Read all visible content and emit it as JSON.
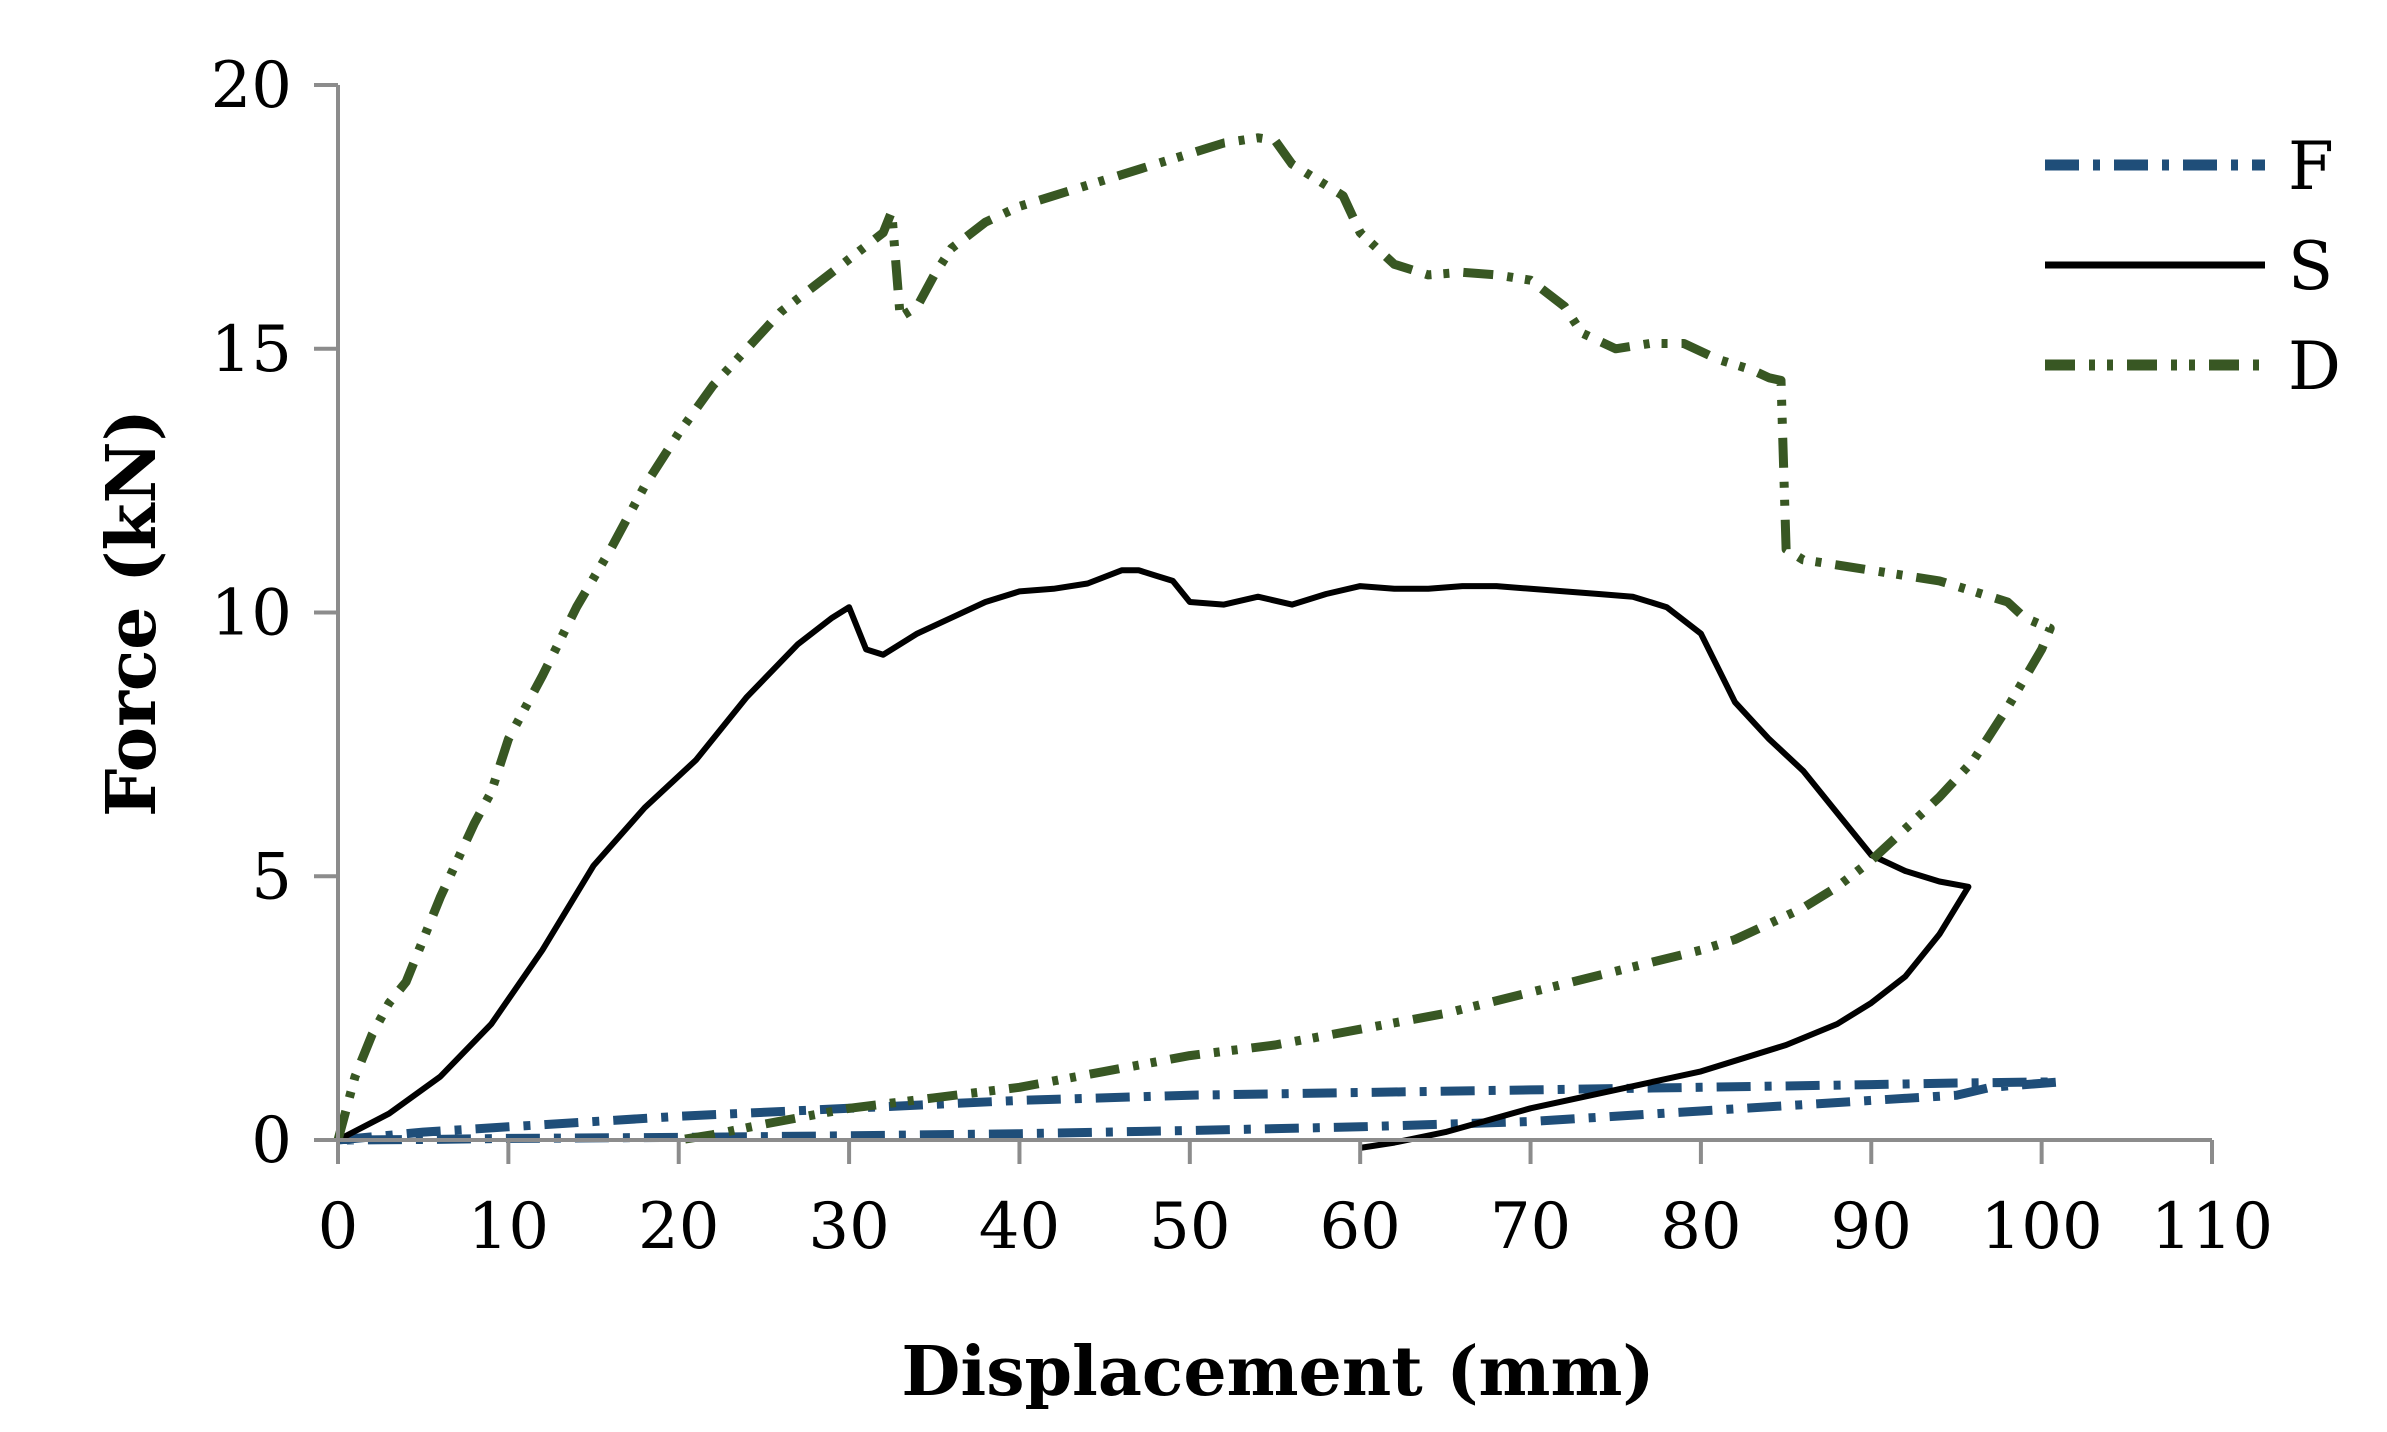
{
  "chart_data": {
    "type": "line",
    "title": "",
    "xlabel": "Displacement (mm)",
    "ylabel": "Force (kN)",
    "xlim": [
      0,
      110
    ],
    "ylim": [
      0,
      20
    ],
    "xticks": [
      "0",
      "10",
      "20",
      "30",
      "40",
      "50",
      "60",
      "70",
      "80",
      "90",
      "100",
      "110"
    ],
    "yticks": [
      "0",
      "5",
      "10",
      "15",
      "20"
    ],
    "grid": false,
    "legend_position": "top-right",
    "series": [
      {
        "name": "F",
        "color": "#1f4e79",
        "style": "dash-dot",
        "x": [
          0,
          5,
          10,
          20,
          30,
          40,
          50,
          60,
          70,
          80,
          90,
          95,
          100,
          101,
          97,
          95,
          90,
          80,
          70,
          60,
          50,
          40,
          30,
          20,
          10,
          5,
          0
        ],
        "y": [
          0,
          0.15,
          0.25,
          0.45,
          0.6,
          0.75,
          0.85,
          0.9,
          0.95,
          1.0,
          1.05,
          1.08,
          1.1,
          1.1,
          1.0,
          0.85,
          0.75,
          0.55,
          0.35,
          0.25,
          0.18,
          0.12,
          0.08,
          0.05,
          0.03,
          0.01,
          0
        ]
      },
      {
        "name": "S",
        "color": "#000000",
        "style": "solid",
        "x": [
          0,
          3,
          6,
          9,
          12,
          15,
          18,
          21,
          24,
          27,
          29,
          30,
          31,
          32,
          34,
          36,
          38,
          40,
          42,
          44,
          46,
          47,
          48,
          49,
          50,
          52,
          54,
          56,
          58,
          60,
          62,
          64,
          66,
          68,
          70,
          72,
          74,
          76,
          78,
          80,
          82,
          84,
          86,
          88,
          90,
          92,
          94,
          95.7,
          94,
          92,
          90,
          88,
          85,
          80,
          75,
          70,
          65,
          62,
          60
        ],
        "y": [
          0,
          0.5,
          1.2,
          2.2,
          3.6,
          5.2,
          6.3,
          7.2,
          8.4,
          9.4,
          9.9,
          10.1,
          9.3,
          9.2,
          9.6,
          9.9,
          10.2,
          10.4,
          10.45,
          10.55,
          10.8,
          10.8,
          10.7,
          10.6,
          10.2,
          10.15,
          10.3,
          10.15,
          10.35,
          10.5,
          10.45,
          10.45,
          10.5,
          10.5,
          10.45,
          10.4,
          10.35,
          10.3,
          10.1,
          9.6,
          8.3,
          7.6,
          7.0,
          6.2,
          5.4,
          5.1,
          4.9,
          4.8,
          3.9,
          3.1,
          2.6,
          2.2,
          1.8,
          1.3,
          0.95,
          0.6,
          0.15,
          -0.05,
          -0.15
        ]
      },
      {
        "name": "D",
        "color": "#385723",
        "style": "dash-dot-dot",
        "x": [
          0,
          1,
          2,
          3,
          4,
          5,
          6,
          7,
          8,
          9,
          10,
          12,
          14,
          16,
          18,
          20,
          22,
          24,
          26,
          28,
          30,
          32,
          32.5,
          33,
          34,
          35,
          36,
          38,
          40,
          42,
          44,
          46,
          48,
          50,
          52,
          54,
          55,
          56,
          57,
          59,
          60,
          62,
          64,
          66,
          68,
          70,
          72,
          73,
          75,
          77,
          79,
          81,
          83,
          84,
          84.7,
          85,
          86,
          88,
          90,
          92,
          94,
          96,
          98,
          99,
          100.5,
          100,
          98,
          96,
          94,
          92,
          90,
          88,
          86,
          84,
          82,
          80,
          75,
          70,
          65,
          60,
          55,
          50,
          45,
          40,
          35,
          30,
          25,
          22,
          20
        ],
        "y": [
          0,
          1.2,
          2.0,
          2.6,
          3.0,
          3.8,
          4.6,
          5.3,
          6.0,
          6.6,
          7.6,
          8.8,
          10.1,
          11.2,
          12.4,
          13.4,
          14.3,
          15.0,
          15.7,
          16.2,
          16.7,
          17.2,
          17.6,
          15.6,
          15.8,
          16.4,
          16.9,
          17.4,
          17.7,
          17.9,
          18.1,
          18.3,
          18.5,
          18.7,
          18.9,
          19.0,
          18.95,
          18.5,
          18.3,
          17.9,
          17.2,
          16.6,
          16.4,
          16.45,
          16.4,
          16.3,
          15.8,
          15.3,
          15.0,
          15.1,
          15.1,
          14.8,
          14.6,
          14.45,
          14.4,
          11.2,
          11.0,
          10.9,
          10.8,
          10.7,
          10.6,
          10.4,
          10.2,
          9.9,
          9.7,
          9.3,
          8.2,
          7.2,
          6.5,
          5.9,
          5.3,
          4.8,
          4.4,
          4.1,
          3.8,
          3.6,
          3.2,
          2.8,
          2.4,
          2.1,
          1.8,
          1.6,
          1.3,
          1.0,
          0.8,
          0.6,
          0.3,
          0.1,
          0
        ]
      }
    ]
  }
}
